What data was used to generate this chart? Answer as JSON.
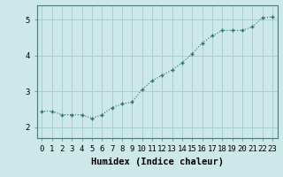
{
  "x": [
    0,
    1,
    2,
    3,
    4,
    5,
    6,
    7,
    8,
    9,
    10,
    11,
    12,
    13,
    14,
    15,
    16,
    17,
    18,
    19,
    20,
    21,
    22,
    23
  ],
  "y": [
    2.45,
    2.45,
    2.35,
    2.35,
    2.35,
    2.25,
    2.35,
    2.55,
    2.65,
    2.7,
    3.05,
    3.3,
    3.45,
    3.6,
    3.8,
    4.05,
    4.35,
    4.55,
    4.7,
    4.7,
    4.7,
    4.8,
    5.05,
    5.08
  ],
  "line_color": "#2d7070",
  "marker": "+",
  "bg_color": "#cce8e8",
  "grid_color": "#aacfcf",
  "xlabel": "Humidex (Indice chaleur)",
  "xlabel_fontsize": 7.5,
  "tick_fontsize": 6.5,
  "ylim": [
    1.7,
    5.4
  ],
  "xlim": [
    -0.5,
    23.5
  ],
  "yticks": [
    2,
    3,
    4,
    5
  ],
  "xticks": [
    0,
    1,
    2,
    3,
    4,
    5,
    6,
    7,
    8,
    9,
    10,
    11,
    12,
    13,
    14,
    15,
    16,
    17,
    18,
    19,
    20,
    21,
    22,
    23
  ]
}
